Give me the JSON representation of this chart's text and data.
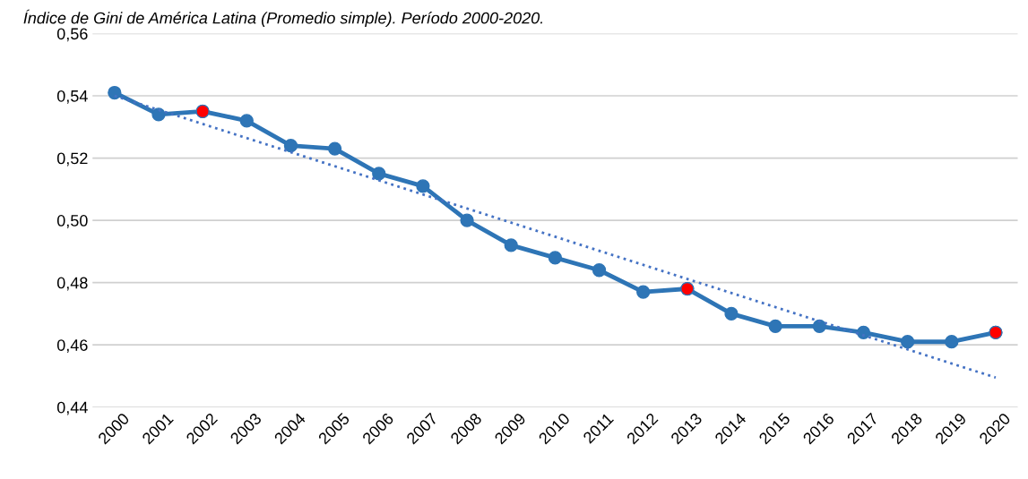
{
  "chart_data": {
    "type": "line",
    "title": "Índice de Gini de América Latina (Promedio simple). Período 2000-2020.",
    "categories": [
      "2000",
      "2001",
      "2002",
      "2003",
      "2004",
      "2005",
      "2006",
      "2007",
      "2008",
      "2009",
      "2010",
      "2011",
      "2012",
      "2013",
      "2014",
      "2015",
      "2016",
      "2017",
      "2018",
      "2019",
      "2020"
    ],
    "series": [
      {
        "color": "#2e75b6",
        "marker": "circle",
        "line_style": "solid",
        "values": [
          0.541,
          0.534,
          0.535,
          0.532,
          0.524,
          0.523,
          0.515,
          0.511,
          0.5,
          0.492,
          0.488,
          0.484,
          0.477,
          0.478,
          0.47,
          0.466,
          0.466,
          0.464,
          0.461,
          0.461,
          0.464
        ]
      },
      {
        "type": "line",
        "color": "#4472c4",
        "marker": "none",
        "line_style": "dotted",
        "values": [
          0.54,
          null,
          null,
          null,
          null,
          null,
          null,
          null,
          null,
          null,
          null,
          null,
          null,
          null,
          null,
          null,
          null,
          null,
          null,
          null,
          0.4495
        ]
      },
      {
        "type": "scatter",
        "color": "#ff0000",
        "marker": "circle",
        "values": [
          null,
          null,
          0.535,
          null,
          null,
          null,
          null,
          null,
          null,
          null,
          null,
          null,
          null,
          0.478,
          null,
          null,
          null,
          null,
          null,
          null,
          0.464
        ]
      }
    ],
    "ylim": [
      0.44,
      0.56
    ],
    "yticks": [
      {
        "value": 0.44,
        "label": "0,44"
      },
      {
        "value": 0.46,
        "label": "0,46"
      },
      {
        "value": 0.48,
        "label": "0,48"
      },
      {
        "value": 0.5,
        "label": "0,50"
      },
      {
        "value": 0.52,
        "label": "0,52"
      },
      {
        "value": 0.54,
        "label": "0,54"
      },
      {
        "value": 0.56,
        "label": "0,56"
      }
    ],
    "grid": "y"
  }
}
